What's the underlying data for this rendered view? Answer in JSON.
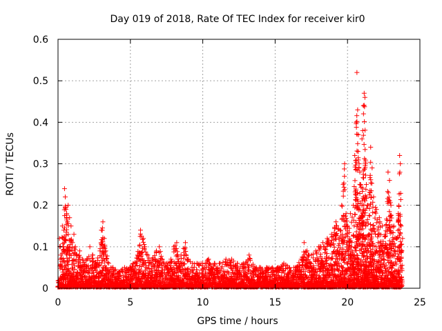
{
  "chart_data": {
    "type": "scatter",
    "title": "Day 019 of 2018, Rate Of TEC Index for receiver kir0",
    "xlabel": "GPS time / hours",
    "ylabel": "ROTI / TECUs",
    "xlim": [
      0,
      25
    ],
    "ylim": [
      0,
      0.6
    ],
    "xticks": [
      0,
      5,
      10,
      15,
      20,
      25
    ],
    "yticks": [
      0,
      0.1,
      0.2,
      0.3,
      0.4,
      0.5,
      0.6
    ],
    "xtick_labels": [
      "0",
      "5",
      "10",
      "15",
      "20",
      "25"
    ],
    "ytick_labels": [
      "0",
      "0.1",
      "0.2",
      "0.3",
      "0.4",
      "0.5",
      "0.6"
    ],
    "grid": true,
    "marker": "plus",
    "series": [
      {
        "name": "ROTI",
        "color": "#ff0000",
        "points": [
          [
            0.1,
            0.12
          ],
          [
            0.15,
            0.1
          ],
          [
            0.2,
            0.08
          ],
          [
            0.3,
            0.15
          ],
          [
            0.4,
            0.14
          ],
          [
            0.45,
            0.24
          ],
          [
            0.5,
            0.22
          ],
          [
            0.55,
            0.19
          ],
          [
            0.6,
            0.18
          ],
          [
            0.65,
            0.16
          ],
          [
            0.7,
            0.2
          ],
          [
            0.8,
            0.17
          ],
          [
            0.9,
            0.15
          ],
          [
            1.0,
            0.11
          ],
          [
            1.1,
            0.13
          ],
          [
            1.2,
            0.1
          ],
          [
            1.3,
            0.08
          ],
          [
            1.5,
            0.09
          ],
          [
            1.7,
            0.07
          ],
          [
            2.0,
            0.07
          ],
          [
            2.2,
            0.1
          ],
          [
            2.4,
            0.08
          ],
          [
            2.6,
            0.06
          ],
          [
            2.9,
            0.09
          ],
          [
            3.0,
            0.14
          ],
          [
            3.1,
            0.16
          ],
          [
            3.2,
            0.12
          ],
          [
            3.3,
            0.09
          ],
          [
            3.5,
            0.06
          ],
          [
            3.8,
            0.05
          ],
          [
            4.2,
            0.04
          ],
          [
            4.6,
            0.05
          ],
          [
            5.0,
            0.05
          ],
          [
            5.2,
            0.06
          ],
          [
            5.5,
            0.08
          ],
          [
            5.7,
            0.14
          ],
          [
            5.9,
            0.12
          ],
          [
            6.0,
            0.1
          ],
          [
            6.2,
            0.08
          ],
          [
            6.5,
            0.07
          ],
          [
            6.8,
            0.09
          ],
          [
            7.0,
            0.1
          ],
          [
            7.2,
            0.07
          ],
          [
            7.5,
            0.06
          ],
          [
            7.8,
            0.07
          ],
          [
            8.0,
            0.1
          ],
          [
            8.2,
            0.11
          ],
          [
            8.5,
            0.08
          ],
          [
            8.8,
            0.11
          ],
          [
            9.0,
            0.07
          ],
          [
            9.3,
            0.06
          ],
          [
            9.6,
            0.06
          ],
          [
            10.0,
            0.06
          ],
          [
            10.4,
            0.07
          ],
          [
            10.8,
            0.06
          ],
          [
            11.2,
            0.06
          ],
          [
            11.6,
            0.07
          ],
          [
            12.0,
            0.07
          ],
          [
            12.4,
            0.06
          ],
          [
            12.8,
            0.06
          ],
          [
            13.2,
            0.08
          ],
          [
            13.6,
            0.05
          ],
          [
            14.0,
            0.05
          ],
          [
            14.4,
            0.05
          ],
          [
            14.8,
            0.05
          ],
          [
            15.2,
            0.05
          ],
          [
            15.6,
            0.06
          ],
          [
            16.0,
            0.05
          ],
          [
            16.4,
            0.05
          ],
          [
            16.8,
            0.07
          ],
          [
            17.0,
            0.11
          ],
          [
            17.2,
            0.09
          ],
          [
            17.5,
            0.08
          ],
          [
            17.8,
            0.09
          ],
          [
            18.0,
            0.1
          ],
          [
            18.3,
            0.11
          ],
          [
            18.6,
            0.12
          ],
          [
            18.9,
            0.13
          ],
          [
            19.2,
            0.16
          ],
          [
            19.5,
            0.14
          ],
          [
            19.6,
            0.2
          ],
          [
            19.7,
            0.25
          ],
          [
            19.8,
            0.3
          ],
          [
            19.9,
            0.18
          ],
          [
            20.0,
            0.15
          ],
          [
            20.2,
            0.18
          ],
          [
            20.4,
            0.2
          ],
          [
            20.5,
            0.32
          ],
          [
            20.6,
            0.4
          ],
          [
            20.65,
            0.52
          ],
          [
            20.7,
            0.43
          ],
          [
            20.75,
            0.37
          ],
          [
            20.8,
            0.3
          ],
          [
            20.85,
            0.28
          ],
          [
            20.9,
            0.25
          ],
          [
            21.0,
            0.36
          ],
          [
            21.05,
            0.38
          ],
          [
            21.1,
            0.44
          ],
          [
            21.15,
            0.47
          ],
          [
            21.2,
            0.46
          ],
          [
            21.25,
            0.3
          ],
          [
            21.3,
            0.25
          ],
          [
            21.4,
            0.2
          ],
          [
            21.6,
            0.34
          ],
          [
            21.7,
            0.29
          ],
          [
            21.8,
            0.22
          ],
          [
            22.0,
            0.19
          ],
          [
            22.2,
            0.17
          ],
          [
            22.4,
            0.15
          ],
          [
            22.6,
            0.13
          ],
          [
            22.8,
            0.28
          ],
          [
            22.9,
            0.26
          ],
          [
            23.0,
            0.2
          ],
          [
            23.2,
            0.15
          ],
          [
            23.4,
            0.12
          ],
          [
            23.5,
            0.18
          ],
          [
            23.6,
            0.32
          ],
          [
            23.65,
            0.3
          ],
          [
            23.7,
            0.15
          ],
          [
            23.8,
            0.12
          ]
        ]
      }
    ]
  }
}
